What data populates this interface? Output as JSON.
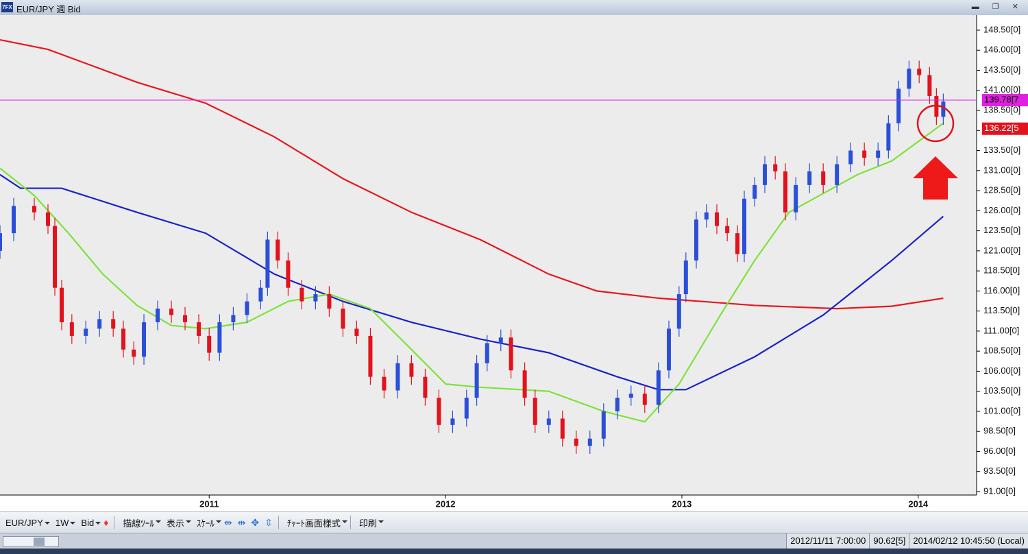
{
  "window": {
    "title": "EUR/JPY 週 Bid"
  },
  "toolbar": {
    "items": [
      "EUR/JPY",
      "1W",
      "Bid",
      "描線ﾂｰﾙ",
      "表示",
      "ｽｹｰﾙ",
      "ﾁｬｰﾄ画面様式",
      "印刷"
    ]
  },
  "status_bar": {
    "items": [
      "2012/11/11 7:00:00",
      "90.62[5]",
      "2014/02/12 10:45:50 (Local)"
    ]
  },
  "chart_data": {
    "type": "candlestick",
    "up_color": "#2a4fd8",
    "down_color": "#e3121c",
    "xlim": [
      2010.115,
      2014.247
    ],
    "xticks": [
      2011,
      2012,
      2013,
      2014
    ],
    "ylim": [
      90.57,
      150.38
    ],
    "yticks": [
      {
        "value": 91,
        "label": "91.00[0]"
      },
      {
        "value": 93.5,
        "label": "93.50[0]"
      },
      {
        "value": 96,
        "label": "96.00[0]"
      },
      {
        "value": 98.5,
        "label": "98.50[0]"
      },
      {
        "value": 101,
        "label": "101.00[0]"
      },
      {
        "value": 103.5,
        "label": "103.50[0]"
      },
      {
        "value": 106,
        "label": "106.00[0]"
      },
      {
        "value": 108.5,
        "label": "108.50[0]"
      },
      {
        "value": 111,
        "label": "111.00[0]"
      },
      {
        "value": 113.5,
        "label": "113.50[0]"
      },
      {
        "value": 116,
        "label": "116.00[0]"
      },
      {
        "value": 118.5,
        "label": "118.50[0]"
      },
      {
        "value": 121,
        "label": "121.00[0]"
      },
      {
        "value": 123.5,
        "label": "123.50[0]"
      },
      {
        "value": 126,
        "label": "126.00[0]"
      },
      {
        "value": 128.5,
        "label": "128.50[0]"
      },
      {
        "value": 131,
        "label": "131.00[0]"
      },
      {
        "value": 133.5,
        "label": "133.50[0]"
      },
      {
        "value": 136,
        "label": "136.00[0]"
      },
      {
        "value": 138.5,
        "label": "138.50[0]"
      },
      {
        "value": 141,
        "label": "141.00[0]"
      },
      {
        "value": 143.5,
        "label": "143.50[0]"
      },
      {
        "value": 146,
        "label": "146.00[0]"
      },
      {
        "value": 148.5,
        "label": "148.50[0]"
      }
    ],
    "x": [
      2010.115,
      2010.173,
      2010.26,
      2010.318,
      2010.347,
      2010.376,
      2010.419,
      2010.478,
      2010.536,
      2010.594,
      2010.637,
      2010.681,
      2010.724,
      2010.782,
      2010.84,
      2010.898,
      2010.956,
      2011.0,
      2011.044,
      2011.102,
      2011.16,
      2011.218,
      2011.247,
      2011.29,
      2011.334,
      2011.392,
      2011.45,
      2011.508,
      2011.566,
      2011.624,
      2011.682,
      2011.74,
      2011.798,
      2011.856,
      2011.914,
      2011.972,
      2012.03,
      2012.089,
      2012.132,
      2012.176,
      2012.234,
      2012.277,
      2012.335,
      2012.379,
      2012.437,
      2012.495,
      2012.553,
      2012.611,
      2012.669,
      2012.727,
      2012.785,
      2012.843,
      2012.901,
      2012.945,
      2012.988,
      2013.017,
      2013.061,
      2013.104,
      2013.148,
      2013.192,
      2013.235,
      2013.264,
      2013.308,
      2013.351,
      2013.395,
      2013.438,
      2013.482,
      2013.54,
      2013.598,
      2013.656,
      2013.714,
      2013.772,
      2013.83,
      2013.874,
      2013.917,
      2013.961,
      2014.004,
      2014.048,
      2014.077,
      2014.106
    ],
    "open": [
      121.0,
      123.2,
      126.6,
      125.8,
      124.1,
      116.4,
      112.1,
      110.4,
      111.3,
      112.5,
      111.3,
      108.7,
      107.8,
      112.1,
      113.8,
      113.0,
      112.1,
      110.4,
      108.3,
      112.1,
      113.0,
      114.7,
      116.4,
      122.4,
      119.8,
      116.4,
      114.7,
      115.6,
      113.8,
      111.3,
      110.4,
      105.3,
      103.6,
      107.0,
      105.3,
      102.7,
      99.3,
      100.1,
      102.7,
      107.0,
      109.5,
      110.2,
      106.1,
      102.7,
      99.3,
      100.1,
      97.6,
      96.7,
      97.6,
      101.0,
      102.7,
      103.2,
      101.8,
      106.1,
      111.3,
      115.6,
      119.8,
      124.9,
      125.8,
      124.1,
      123.2,
      120.6,
      127.5,
      129.2,
      131.8,
      130.9,
      125.8,
      129.2,
      130.9,
      129.2,
      131.8,
      133.5,
      132.6,
      133.5,
      136.9,
      141.2,
      143.7,
      142.9,
      140.3,
      137.7
    ],
    "high": [
      124.2,
      127.6,
      127.6,
      126.8,
      125.1,
      117.4,
      113.1,
      112.3,
      113.5,
      113.5,
      112.3,
      109.7,
      113.1,
      114.8,
      114.8,
      114.0,
      113.1,
      111.4,
      113.1,
      114.0,
      115.7,
      117.4,
      123.4,
      123.4,
      120.8,
      117.4,
      116.6,
      116.6,
      114.8,
      112.3,
      111.4,
      106.3,
      108.0,
      108.0,
      106.3,
      103.7,
      101.1,
      103.7,
      108.0,
      110.5,
      111.2,
      111.2,
      107.1,
      103.7,
      101.1,
      101.1,
      98.6,
      98.6,
      102.0,
      103.7,
      104.2,
      104.2,
      107.1,
      112.3,
      116.6,
      120.8,
      125.9,
      126.8,
      126.8,
      125.1,
      124.2,
      128.5,
      130.2,
      132.8,
      132.8,
      131.9,
      130.2,
      131.9,
      131.9,
      132.8,
      134.5,
      134.5,
      134.5,
      137.9,
      142.2,
      144.7,
      144.7,
      143.9,
      141.3,
      140.6
    ],
    "low": [
      120.0,
      122.2,
      124.8,
      123.1,
      115.4,
      111.1,
      109.4,
      109.4,
      110.3,
      110.3,
      107.7,
      106.8,
      106.8,
      111.1,
      112.0,
      111.1,
      109.4,
      107.3,
      107.3,
      111.1,
      112.0,
      113.7,
      115.4,
      118.8,
      115.4,
      113.7,
      113.7,
      112.8,
      110.3,
      109.4,
      104.3,
      102.6,
      102.6,
      104.3,
      101.7,
      98.3,
      98.3,
      99.1,
      101.7,
      106.0,
      108.5,
      105.1,
      101.7,
      98.3,
      98.3,
      96.6,
      95.7,
      95.7,
      96.6,
      100.0,
      101.7,
      100.8,
      100.8,
      105.1,
      110.3,
      114.6,
      118.8,
      123.9,
      123.1,
      122.2,
      119.6,
      119.6,
      126.5,
      128.2,
      129.9,
      124.8,
      124.8,
      128.2,
      128.2,
      128.2,
      130.8,
      131.6,
      131.6,
      132.5,
      135.9,
      140.2,
      141.9,
      139.3,
      136.7,
      136.7
    ],
    "close": [
      123.2,
      126.6,
      125.8,
      124.1,
      116.4,
      112.1,
      110.4,
      111.3,
      112.5,
      111.3,
      108.7,
      107.8,
      112.1,
      113.8,
      113.0,
      112.1,
      110.4,
      108.3,
      112.1,
      113.0,
      114.7,
      116.4,
      122.4,
      119.8,
      116.4,
      114.7,
      115.6,
      113.8,
      111.3,
      110.4,
      105.3,
      103.6,
      107.0,
      105.3,
      102.7,
      99.3,
      100.1,
      102.7,
      107.0,
      109.5,
      110.2,
      106.1,
      102.7,
      99.3,
      100.1,
      97.6,
      96.7,
      97.6,
      101.0,
      102.7,
      103.2,
      101.8,
      106.1,
      111.3,
      115.6,
      119.8,
      124.9,
      125.8,
      124.1,
      123.2,
      120.6,
      127.5,
      129.2,
      131.8,
      130.9,
      125.8,
      129.2,
      130.9,
      129.2,
      131.8,
      133.5,
      132.6,
      133.5,
      136.9,
      141.2,
      143.7,
      142.9,
      140.3,
      137.7,
      139.6
    ],
    "moving_averages": [
      {
        "color": "#e8161c",
        "x": [
          2010.115,
          2010.318,
          2010.695,
          2010.985,
          2011.276,
          2011.566,
          2011.856,
          2012.147,
          2012.437,
          2012.64,
          2012.901,
          2013.308,
          2013.656,
          2013.888,
          2014.106
        ],
        "values": [
          147.3,
          146.1,
          142.0,
          139.4,
          135.2,
          130.0,
          125.8,
          122.4,
          118.1,
          116.0,
          115.1,
          114.2,
          113.8,
          114.1,
          115.1
        ]
      },
      {
        "color": "#1a22c8",
        "x": [
          2010.115,
          2010.202,
          2010.376,
          2010.695,
          2010.985,
          2011.276,
          2011.566,
          2011.856,
          2012.147,
          2012.437,
          2012.727,
          2012.901,
          2013.017,
          2013.308,
          2013.598,
          2013.888,
          2014.106
        ],
        "values": [
          130.5,
          128.8,
          128.8,
          125.8,
          123.2,
          118.1,
          114.7,
          112.1,
          110.0,
          108.3,
          105.3,
          103.7,
          103.7,
          107.8,
          113.0,
          119.8,
          125.3
        ]
      },
      {
        "color": "#7ee23a",
        "x": [
          2010.115,
          2010.26,
          2010.405,
          2010.55,
          2010.695,
          2010.84,
          2010.985,
          2011.16,
          2011.334,
          2011.508,
          2011.682,
          2011.856,
          2012.001,
          2012.147,
          2012.437,
          2012.669,
          2012.843,
          2012.988,
          2013.163,
          2013.308,
          2013.453,
          2013.743,
          2013.888,
          2014.106
        ],
        "values": [
          131.3,
          127.9,
          123.2,
          118.1,
          114.2,
          111.7,
          111.3,
          112.1,
          114.7,
          115.6,
          113.8,
          108.7,
          104.4,
          104.0,
          103.5,
          101.0,
          99.7,
          104.4,
          113.0,
          119.8,
          125.8,
          130.5,
          132.2,
          136.9
        ]
      }
    ],
    "price_lines": [
      {
        "value": 139.78,
        "label": "139.78[7",
        "color": "#e020e0"
      },
      {
        "value": 136.22,
        "label": "136.22[5",
        "color": "#e3121c"
      }
    ]
  }
}
